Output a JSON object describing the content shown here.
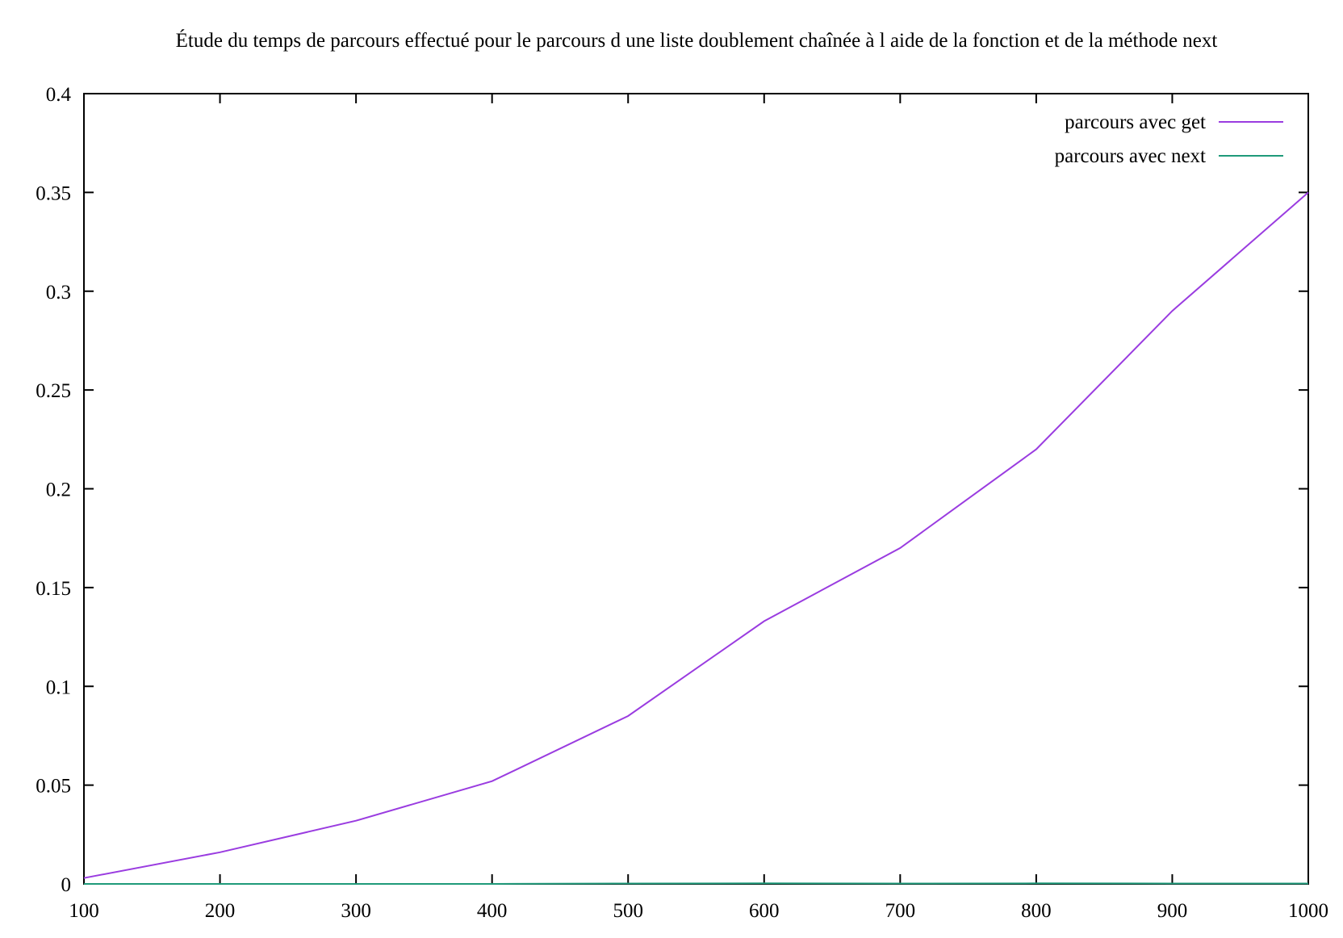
{
  "chart_data": {
    "type": "line",
    "title": "Étude du temps de parcours effectué pour le parcours d une liste doublement chaînée à l aide de la fonction et de la méthode next",
    "xlabel": "",
    "ylabel": "",
    "xlim": [
      100,
      1000
    ],
    "ylim": [
      0,
      0.4
    ],
    "x_ticks": [
      "100",
      "200",
      "300",
      "400",
      "500",
      "600",
      "700",
      "800",
      "900",
      "1000"
    ],
    "y_ticks": [
      "0",
      "0.05",
      "0.1",
      "0.15",
      "0.2",
      "0.25",
      "0.3",
      "0.35",
      "0.4"
    ],
    "x": [
      100,
      200,
      300,
      400,
      500,
      600,
      700,
      800,
      900,
      1000
    ],
    "series": [
      {
        "name": "parcours avec get",
        "color": "#9a3ce0",
        "values": [
          0.003,
          0.016,
          0.032,
          0.052,
          0.085,
          0.133,
          0.17,
          0.22,
          0.29,
          0.35
        ]
      },
      {
        "name": "parcours avec next",
        "color": "#1f9a7a",
        "values": [
          0.0,
          0.0,
          0.0,
          0.0,
          0.0002,
          0.0003,
          0.0002,
          0.0003,
          0.0002,
          0.0002
        ]
      }
    ],
    "grid": false,
    "legend_position": "top-right"
  }
}
